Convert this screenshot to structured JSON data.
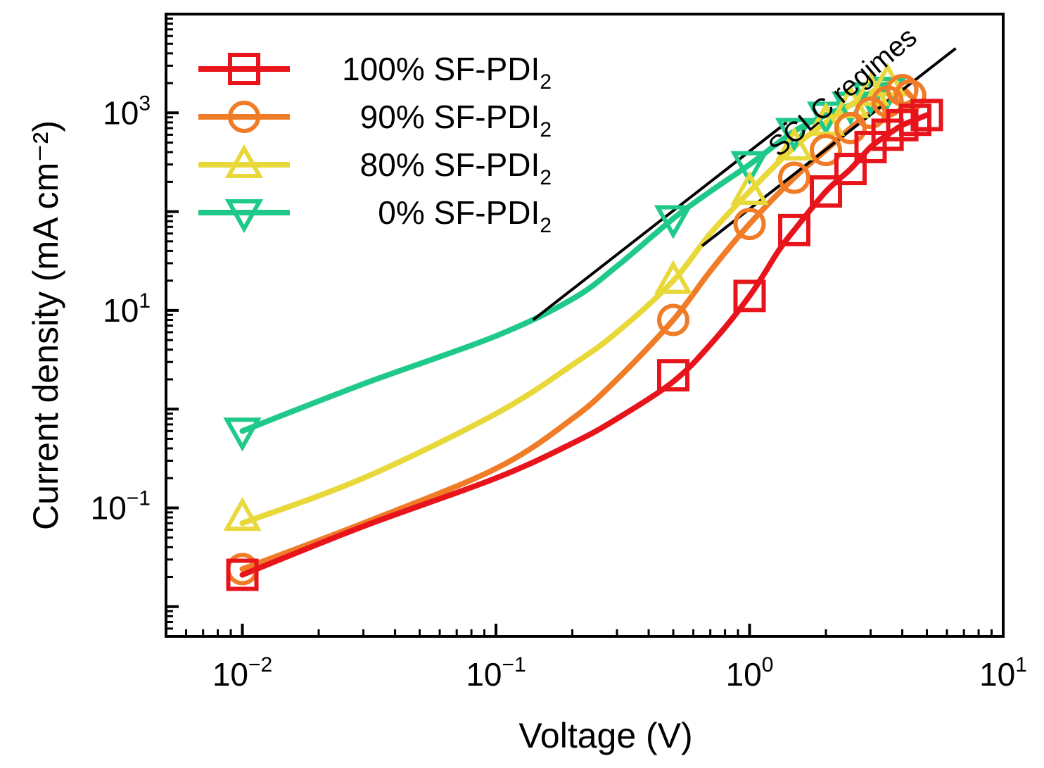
{
  "chart_data": {
    "type": "line",
    "xlabel": "Voltage (V)",
    "ylabel": "Current density (mA cm⁻²)",
    "x_scale": "log",
    "y_scale": "log",
    "xlim": [
      0.005,
      10
    ],
    "ylim": [
      0.005,
      10000
    ],
    "x_ticks": [
      {
        "value": 0.01,
        "base": "10",
        "exp": "−2"
      },
      {
        "value": 0.1,
        "base": "10",
        "exp": "−1"
      },
      {
        "value": 1,
        "base": "10",
        "exp": "0"
      },
      {
        "value": 10,
        "base": "10",
        "exp": "1"
      }
    ],
    "y_ticks": [
      {
        "value": 0.1,
        "base": "10",
        "exp": "−1"
      },
      {
        "value": 10,
        "base": "10",
        "exp": "1"
      },
      {
        "value": 1000,
        "base": "10",
        "exp": "3"
      }
    ],
    "legend_position": "top-left",
    "grid": false,
    "series": [
      {
        "name": "100% SF-PDI",
        "name_sub": "2",
        "marker": "square",
        "color": "#e8141c",
        "curve": [
          [
            0.01,
            0.021
          ],
          [
            0.03,
            0.065
          ],
          [
            0.1,
            0.2
          ],
          [
            0.2,
            0.45
          ],
          [
            0.3,
            0.8
          ],
          [
            0.5,
            1.9
          ],
          [
            0.7,
            4.5
          ],
          [
            1.0,
            14
          ],
          [
            1.3,
            40
          ],
          [
            1.5,
            65
          ],
          [
            2.0,
            160
          ],
          [
            2.5,
            270
          ],
          [
            3.0,
            450
          ],
          [
            3.5,
            600
          ],
          [
            4.0,
            750
          ],
          [
            4.5,
            850
          ],
          [
            5.0,
            950
          ]
        ],
        "markers": [
          [
            0.01,
            0.021
          ],
          [
            0.5,
            2.2
          ],
          [
            1.0,
            14
          ],
          [
            1.5,
            65
          ],
          [
            2.0,
            160
          ],
          [
            2.5,
            270
          ],
          [
            3.0,
            450
          ],
          [
            3.5,
            600
          ],
          [
            4.0,
            750
          ],
          [
            4.5,
            850
          ],
          [
            5.0,
            950
          ]
        ]
      },
      {
        "name": "90% SF-PDI",
        "name_sub": "2",
        "marker": "circle",
        "color": "#f07c28",
        "curve": [
          [
            0.01,
            0.024
          ],
          [
            0.03,
            0.07
          ],
          [
            0.1,
            0.25
          ],
          [
            0.2,
            0.8
          ],
          [
            0.3,
            2
          ],
          [
            0.5,
            8
          ],
          [
            0.7,
            25
          ],
          [
            1.0,
            75
          ],
          [
            1.5,
            220
          ],
          [
            2.0,
            420
          ],
          [
            2.5,
            700
          ],
          [
            3.0,
            1000
          ],
          [
            3.5,
            1300
          ],
          [
            4.0,
            1700
          ],
          [
            4.3,
            1500
          ]
        ],
        "markers": [
          [
            0.01,
            0.024
          ],
          [
            0.5,
            8
          ],
          [
            1.0,
            75
          ],
          [
            1.5,
            220
          ],
          [
            2.0,
            420
          ],
          [
            2.5,
            700
          ],
          [
            3.0,
            1000
          ],
          [
            3.5,
            1300
          ],
          [
            4.0,
            1700
          ],
          [
            4.3,
            1500
          ]
        ]
      },
      {
        "name": "80% SF-PDI",
        "name_sub": "2",
        "marker": "triangle-up",
        "color": "#e8d83a",
        "curve": [
          [
            0.01,
            0.07
          ],
          [
            0.03,
            0.2
          ],
          [
            0.1,
            0.9
          ],
          [
            0.2,
            2.8
          ],
          [
            0.3,
            6
          ],
          [
            0.5,
            20
          ],
          [
            0.7,
            60
          ],
          [
            1.0,
            160
          ],
          [
            1.5,
            450
          ],
          [
            2.0,
            800
          ],
          [
            2.5,
            1200
          ],
          [
            3.0,
            1600
          ],
          [
            3.5,
            2000
          ]
        ],
        "markers": [
          [
            0.01,
            0.08
          ],
          [
            0.5,
            20
          ],
          [
            1.0,
            160
          ],
          [
            1.5,
            450
          ],
          [
            2.0,
            800
          ],
          [
            2.5,
            1200
          ],
          [
            3.0,
            1600
          ],
          [
            3.5,
            2000
          ]
        ]
      },
      {
        "name": "0% SF-PDI",
        "name_sub": "2",
        "marker": "triangle-down",
        "color": "#1ec98a",
        "curve": [
          [
            0.01,
            0.6
          ],
          [
            0.03,
            1.8
          ],
          [
            0.1,
            5.5
          ],
          [
            0.2,
            13
          ],
          [
            0.3,
            28
          ],
          [
            0.5,
            85
          ],
          [
            0.7,
            160
          ],
          [
            1.0,
            300
          ],
          [
            1.5,
            650
          ],
          [
            2.0,
            950
          ],
          [
            2.5,
            1200
          ],
          [
            3.0,
            1500
          ],
          [
            3.5,
            1700
          ]
        ],
        "markers": [
          [
            0.01,
            0.6
          ],
          [
            0.5,
            85
          ],
          [
            1.0,
            300
          ],
          [
            1.5,
            650
          ],
          [
            2.0,
            950
          ],
          [
            2.5,
            1200
          ],
          [
            3.0,
            1500
          ],
          [
            3.5,
            1700
          ]
        ]
      }
    ],
    "fit_lines": [
      {
        "x": [
          0.14,
          1.4
        ],
        "y": [
          8,
          800
        ],
        "color": "#000000"
      },
      {
        "x": [
          0.65,
          6.5
        ],
        "y": [
          45,
          4500
        ],
        "color": "#000000"
      }
    ],
    "annotations": [
      {
        "text": "SCLC regimes",
        "x": 1.3,
        "y": 350,
        "rotation": -40
      }
    ]
  }
}
